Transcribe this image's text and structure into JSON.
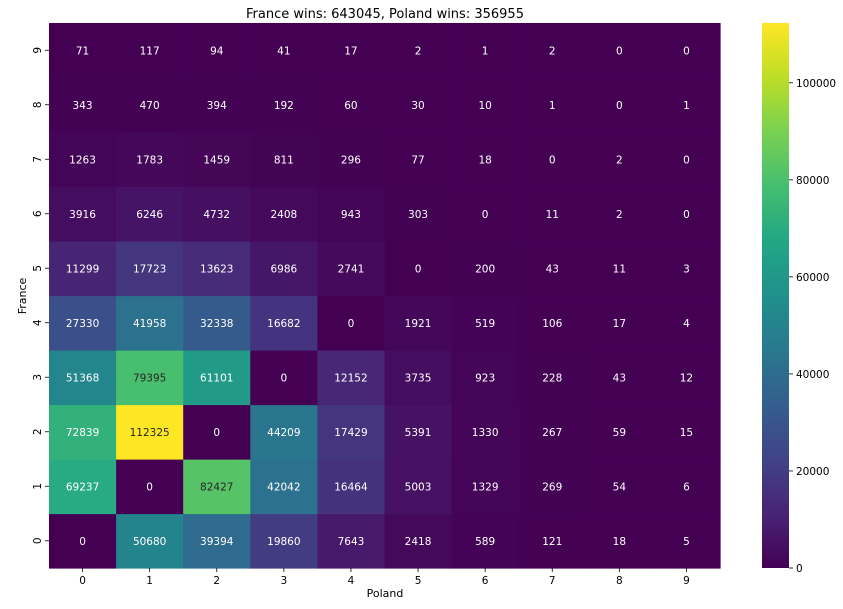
{
  "chart_data": {
    "type": "heatmap",
    "title": "France wins: 643045, Poland wins: 356955",
    "xlabel": "Poland",
    "ylabel": "France",
    "x_categories": [
      "0",
      "1",
      "2",
      "3",
      "4",
      "5",
      "6",
      "7",
      "8",
      "9"
    ],
    "y_categories": [
      "0",
      "1",
      "2",
      "3",
      "4",
      "5",
      "6",
      "7",
      "8",
      "9"
    ],
    "values": [
      [
        0,
        50680,
        39394,
        19860,
        7643,
        2418,
        589,
        121,
        18,
        5
      ],
      [
        69237,
        0,
        82427,
        42042,
        16464,
        5003,
        1329,
        269,
        54,
        6
      ],
      [
        72839,
        112325,
        0,
        44209,
        17429,
        5391,
        1330,
        267,
        59,
        15
      ],
      [
        51368,
        79395,
        61101,
        0,
        12152,
        3735,
        923,
        228,
        43,
        12
      ],
      [
        27330,
        41958,
        32338,
        16682,
        0,
        1921,
        519,
        106,
        17,
        4
      ],
      [
        11299,
        17723,
        13623,
        6986,
        2741,
        0,
        200,
        43,
        11,
        3
      ],
      [
        3916,
        6246,
        4732,
        2408,
        943,
        303,
        0,
        11,
        2,
        0
      ],
      [
        1263,
        1783,
        1459,
        811,
        296,
        77,
        18,
        0,
        2,
        0
      ],
      [
        343,
        470,
        394,
        192,
        60,
        30,
        10,
        1,
        0,
        1
      ],
      [
        71,
        117,
        94,
        41,
        17,
        2,
        1,
        2,
        0,
        0
      ]
    ],
    "colorscale": "viridis",
    "colorbar_range": [
      0,
      112325
    ],
    "colorbar_ticks": [
      0,
      20000,
      40000,
      60000,
      80000,
      100000
    ],
    "y_axis_order": "0 at bottom, 9 at top",
    "annotations": "cell values shown"
  }
}
